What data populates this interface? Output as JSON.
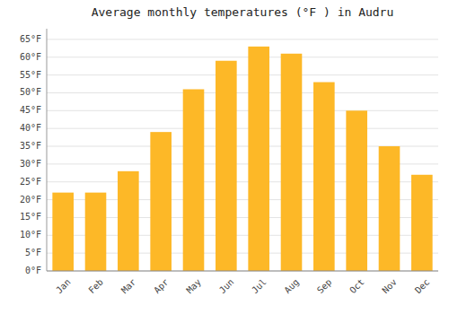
{
  "chart_data": {
    "type": "bar",
    "title": "Average monthly temperatures (°F ) in Audru",
    "categories": [
      "Jan",
      "Feb",
      "Mar",
      "Apr",
      "May",
      "Jun",
      "Jul",
      "Aug",
      "Sep",
      "Oct",
      "Nov",
      "Dec"
    ],
    "values": [
      22,
      22,
      28,
      39,
      51,
      59,
      63,
      61,
      53,
      45,
      35,
      27
    ],
    "color": "#FDB827",
    "ylim": [
      0,
      68
    ],
    "yticks": [
      {
        "value": 0,
        "label": "0°F"
      },
      {
        "value": 5,
        "label": "5°F"
      },
      {
        "value": 10,
        "label": "10°F"
      },
      {
        "value": 15,
        "label": "15°F"
      },
      {
        "value": 20,
        "label": "20°F"
      },
      {
        "value": 25,
        "label": "25°F"
      },
      {
        "value": 30,
        "label": "30°F"
      },
      {
        "value": 35,
        "label": "35°F"
      },
      {
        "value": 40,
        "label": "40°F"
      },
      {
        "value": 45,
        "label": "45°F"
      },
      {
        "value": 50,
        "label": "50°F"
      },
      {
        "value": 55,
        "label": "55°F"
      },
      {
        "value": 60,
        "label": "60°F"
      },
      {
        "value": 65,
        "label": "65°F"
      }
    ],
    "grid": true
  }
}
